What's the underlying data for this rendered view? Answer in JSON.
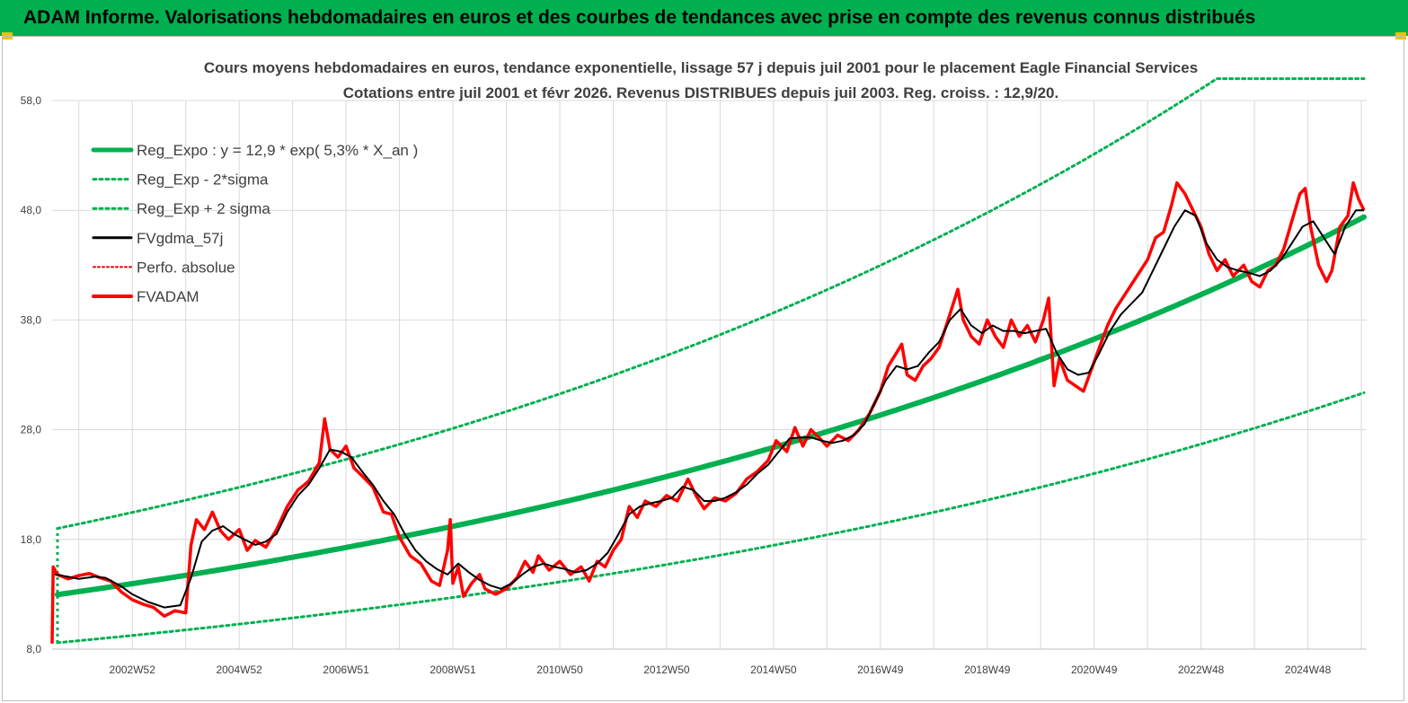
{
  "banner_title": "ADAM Informe. Valorisations hebdomadaires en euros et des courbes de tendances avec prise en compte des revenus connus distribués",
  "colors": {
    "banner": "#00b050",
    "reg_expo": "#00b050",
    "sigma": "#00b050",
    "smoothed": "#000000",
    "perfo": "#e00000",
    "fvadam": "#ff0000"
  },
  "chart_data": {
    "type": "line",
    "title": "Cours moyens hebdomadaires en euros, tendance exponentielle, lissage 57 j depuis juil 2001 pour le placement Eagle Financial Services",
    "subtitle": "Cotations entre juil 2001 et févr 2026. Revenus DISTRIBUES depuis juil 2003. Reg. croiss. : 12,9/20.",
    "xlabel": "",
    "ylabel": "",
    "ylim": [
      8,
      58
    ],
    "yticks": [
      "8,0",
      "18,0",
      "28,0",
      "38,0",
      "48,0",
      "58,0"
    ],
    "xlim": [
      2001.5,
      2026.1
    ],
    "xticks": [
      {
        "label": "2002W52",
        "x": 2003.0
      },
      {
        "label": "2004W52",
        "x": 2005.0
      },
      {
        "label": "2006W51",
        "x": 2007.0
      },
      {
        "label": "2008W51",
        "x": 2009.0
      },
      {
        "label": "2010W50",
        "x": 2011.0
      },
      {
        "label": "2012W50",
        "x": 2013.0
      },
      {
        "label": "2014W50",
        "x": 2015.0
      },
      {
        "label": "2016W49",
        "x": 2017.0
      },
      {
        "label": "2018W49",
        "x": 2019.0
      },
      {
        "label": "2020W49",
        "x": 2021.0
      },
      {
        "label": "2022W48",
        "x": 2023.0
      },
      {
        "label": "2024W48",
        "x": 2025.0
      }
    ],
    "grid": true,
    "legend": "top-left",
    "series": [
      {
        "name": "Reg_Expo : y = 12,9 * exp( 5,3% *  X_an )",
        "style": "solid-thick",
        "formula": {
          "a": 12.9,
          "rate": 0.053,
          "x0": 2001.5
        }
      },
      {
        "name": "Reg_Exp - 2*sigma",
        "style": "dotted",
        "formula": {
          "factor": 0.662
        }
      },
      {
        "name": "Reg_Exp + 2 sigma",
        "style": "dotted",
        "formula": {
          "factor": 1.465,
          "cap": 60
        }
      },
      {
        "name": "FVgdma_57j",
        "style": "solid",
        "points": [
          [
            2001.55,
            14.8
          ],
          [
            2001.8,
            14.6
          ],
          [
            2002.0,
            14.4
          ],
          [
            2002.3,
            14.6
          ],
          [
            2002.5,
            14.5
          ],
          [
            2002.8,
            13.7
          ],
          [
            2003.0,
            13.0
          ],
          [
            2003.3,
            12.3
          ],
          [
            2003.6,
            11.8
          ],
          [
            2003.9,
            12.0
          ],
          [
            2004.1,
            14.5
          ],
          [
            2004.3,
            17.8
          ],
          [
            2004.5,
            18.8
          ],
          [
            2004.7,
            19.2
          ],
          [
            2004.9,
            18.5
          ],
          [
            2005.1,
            18.0
          ],
          [
            2005.3,
            17.5
          ],
          [
            2005.5,
            17.8
          ],
          [
            2005.7,
            18.5
          ],
          [
            2005.9,
            20.5
          ],
          [
            2006.1,
            22.0
          ],
          [
            2006.3,
            23.0
          ],
          [
            2006.5,
            24.5
          ],
          [
            2006.7,
            26.2
          ],
          [
            2006.9,
            26.0
          ],
          [
            2007.1,
            25.5
          ],
          [
            2007.3,
            24.2
          ],
          [
            2007.5,
            23.0
          ],
          [
            2007.7,
            21.5
          ],
          [
            2007.9,
            20.3
          ],
          [
            2008.1,
            18.5
          ],
          [
            2008.3,
            17.0
          ],
          [
            2008.5,
            16.0
          ],
          [
            2008.7,
            15.3
          ],
          [
            2008.9,
            14.8
          ],
          [
            2009.1,
            15.8
          ],
          [
            2009.3,
            15.0
          ],
          [
            2009.5,
            14.3
          ],
          [
            2009.7,
            13.8
          ],
          [
            2009.9,
            13.5
          ],
          [
            2010.1,
            14.0
          ],
          [
            2010.3,
            14.8
          ],
          [
            2010.5,
            15.5
          ],
          [
            2010.7,
            15.8
          ],
          [
            2010.9,
            15.5
          ],
          [
            2011.1,
            15.3
          ],
          [
            2011.3,
            15.0
          ],
          [
            2011.5,
            15.2
          ],
          [
            2011.7,
            15.8
          ],
          [
            2011.9,
            16.8
          ],
          [
            2012.1,
            18.5
          ],
          [
            2012.3,
            20.3
          ],
          [
            2012.5,
            21.0
          ],
          [
            2012.7,
            21.3
          ],
          [
            2012.9,
            21.5
          ],
          [
            2013.1,
            21.8
          ],
          [
            2013.3,
            22.8
          ],
          [
            2013.5,
            22.5
          ],
          [
            2013.7,
            21.5
          ],
          [
            2013.9,
            21.5
          ],
          [
            2014.1,
            21.8
          ],
          [
            2014.3,
            22.3
          ],
          [
            2014.5,
            23.0
          ],
          [
            2014.7,
            24.0
          ],
          [
            2014.9,
            24.8
          ],
          [
            2015.1,
            26.0
          ],
          [
            2015.3,
            27.2
          ],
          [
            2015.5,
            27.3
          ],
          [
            2015.7,
            27.3
          ],
          [
            2015.9,
            27.0
          ],
          [
            2016.1,
            26.8
          ],
          [
            2016.3,
            27.0
          ],
          [
            2016.5,
            27.5
          ],
          [
            2016.7,
            28.5
          ],
          [
            2016.9,
            30.5
          ],
          [
            2017.1,
            32.5
          ],
          [
            2017.3,
            33.8
          ],
          [
            2017.5,
            33.5
          ],
          [
            2017.7,
            33.8
          ],
          [
            2017.9,
            35.0
          ],
          [
            2018.1,
            36.0
          ],
          [
            2018.3,
            38.0
          ],
          [
            2018.5,
            39.0
          ],
          [
            2018.7,
            37.5
          ],
          [
            2018.9,
            36.8
          ],
          [
            2019.1,
            37.5
          ],
          [
            2019.3,
            37.0
          ],
          [
            2019.5,
            37.0
          ],
          [
            2019.7,
            36.8
          ],
          [
            2019.9,
            37.0
          ],
          [
            2020.1,
            37.2
          ],
          [
            2020.3,
            35.0
          ],
          [
            2020.5,
            33.5
          ],
          [
            2020.7,
            33.0
          ],
          [
            2020.9,
            33.2
          ],
          [
            2021.1,
            35.0
          ],
          [
            2021.3,
            37.0
          ],
          [
            2021.5,
            38.5
          ],
          [
            2021.7,
            39.5
          ],
          [
            2021.9,
            40.5
          ],
          [
            2022.1,
            42.5
          ],
          [
            2022.3,
            44.5
          ],
          [
            2022.5,
            46.5
          ],
          [
            2022.7,
            48.0
          ],
          [
            2022.9,
            47.5
          ],
          [
            2023.1,
            45.0
          ],
          [
            2023.3,
            43.5
          ],
          [
            2023.5,
            42.8
          ],
          [
            2023.7,
            42.5
          ],
          [
            2023.9,
            42.3
          ],
          [
            2024.1,
            42.0
          ],
          [
            2024.3,
            42.5
          ],
          [
            2024.5,
            43.5
          ],
          [
            2024.7,
            45.0
          ],
          [
            2024.9,
            46.5
          ],
          [
            2025.1,
            47.0
          ],
          [
            2025.3,
            45.5
          ],
          [
            2025.5,
            44.0
          ],
          [
            2025.7,
            46.5
          ],
          [
            2025.9,
            48.0
          ],
          [
            2026.05,
            48.0
          ]
        ]
      },
      {
        "name": "Perfo. absolue",
        "style": "dotted",
        "points": []
      },
      {
        "name": "FVADAM",
        "style": "solid-thick",
        "points": [
          [
            2001.5,
            8.5
          ],
          [
            2001.52,
            15.5
          ],
          [
            2001.6,
            14.8
          ],
          [
            2001.8,
            14.4
          ],
          [
            2002.0,
            14.7
          ],
          [
            2002.2,
            14.9
          ],
          [
            2002.4,
            14.5
          ],
          [
            2002.6,
            14.2
          ],
          [
            2002.8,
            13.2
          ],
          [
            2003.0,
            12.5
          ],
          [
            2003.2,
            12.1
          ],
          [
            2003.4,
            11.8
          ],
          [
            2003.6,
            11.0
          ],
          [
            2003.8,
            11.5
          ],
          [
            2004.0,
            11.3
          ],
          [
            2004.1,
            17.5
          ],
          [
            2004.2,
            19.8
          ],
          [
            2004.35,
            18.9
          ],
          [
            2004.5,
            20.5
          ],
          [
            2004.65,
            18.8
          ],
          [
            2004.8,
            18.0
          ],
          [
            2005.0,
            18.9
          ],
          [
            2005.15,
            17.0
          ],
          [
            2005.3,
            17.9
          ],
          [
            2005.5,
            17.3
          ],
          [
            2005.7,
            18.9
          ],
          [
            2005.9,
            21.0
          ],
          [
            2006.1,
            22.5
          ],
          [
            2006.3,
            23.3
          ],
          [
            2006.5,
            25.0
          ],
          [
            2006.6,
            29.0
          ],
          [
            2006.7,
            26.2
          ],
          [
            2006.85,
            25.5
          ],
          [
            2007.0,
            26.5
          ],
          [
            2007.15,
            24.5
          ],
          [
            2007.3,
            23.8
          ],
          [
            2007.5,
            22.8
          ],
          [
            2007.7,
            20.5
          ],
          [
            2007.85,
            20.3
          ],
          [
            2008.0,
            18.2
          ],
          [
            2008.2,
            16.5
          ],
          [
            2008.4,
            15.8
          ],
          [
            2008.6,
            14.2
          ],
          [
            2008.75,
            13.8
          ],
          [
            2008.9,
            17.0
          ],
          [
            2008.95,
            19.8
          ],
          [
            2009.0,
            14.0
          ],
          [
            2009.1,
            15.5
          ],
          [
            2009.2,
            12.8
          ],
          [
            2009.35,
            14.0
          ],
          [
            2009.5,
            14.8
          ],
          [
            2009.6,
            13.5
          ],
          [
            2009.8,
            13.0
          ],
          [
            2010.0,
            13.5
          ],
          [
            2010.2,
            14.5
          ],
          [
            2010.35,
            16.0
          ],
          [
            2010.5,
            15.0
          ],
          [
            2010.6,
            16.5
          ],
          [
            2010.8,
            15.2
          ],
          [
            2011.0,
            16.0
          ],
          [
            2011.2,
            14.8
          ],
          [
            2011.4,
            15.5
          ],
          [
            2011.55,
            14.2
          ],
          [
            2011.7,
            16.0
          ],
          [
            2011.85,
            15.5
          ],
          [
            2012.0,
            17.0
          ],
          [
            2012.15,
            18.0
          ],
          [
            2012.3,
            21.0
          ],
          [
            2012.45,
            20.0
          ],
          [
            2012.6,
            21.5
          ],
          [
            2012.8,
            21.0
          ],
          [
            2013.0,
            22.0
          ],
          [
            2013.2,
            21.5
          ],
          [
            2013.4,
            23.5
          ],
          [
            2013.55,
            22.0
          ],
          [
            2013.7,
            20.8
          ],
          [
            2013.9,
            21.8
          ],
          [
            2014.1,
            21.5
          ],
          [
            2014.3,
            22.2
          ],
          [
            2014.5,
            23.5
          ],
          [
            2014.7,
            24.2
          ],
          [
            2014.9,
            25.2
          ],
          [
            2015.05,
            27.0
          ],
          [
            2015.25,
            26.0
          ],
          [
            2015.4,
            28.2
          ],
          [
            2015.55,
            26.5
          ],
          [
            2015.7,
            28.0
          ],
          [
            2015.85,
            27.3
          ],
          [
            2016.0,
            26.5
          ],
          [
            2016.2,
            27.5
          ],
          [
            2016.4,
            27.0
          ],
          [
            2016.6,
            28.0
          ],
          [
            2016.8,
            29.5
          ],
          [
            2017.0,
            31.5
          ],
          [
            2017.15,
            33.8
          ],
          [
            2017.3,
            35.0
          ],
          [
            2017.4,
            35.8
          ],
          [
            2017.5,
            33.0
          ],
          [
            2017.65,
            32.5
          ],
          [
            2017.8,
            33.8
          ],
          [
            2017.95,
            34.5
          ],
          [
            2018.1,
            35.5
          ],
          [
            2018.3,
            38.5
          ],
          [
            2018.45,
            40.8
          ],
          [
            2018.55,
            38.0
          ],
          [
            2018.7,
            36.5
          ],
          [
            2018.85,
            35.8
          ],
          [
            2019.0,
            38.0
          ],
          [
            2019.15,
            36.5
          ],
          [
            2019.3,
            35.5
          ],
          [
            2019.45,
            38.0
          ],
          [
            2019.6,
            36.5
          ],
          [
            2019.75,
            37.5
          ],
          [
            2019.9,
            36.0
          ],
          [
            2020.05,
            38.0
          ],
          [
            2020.15,
            40.0
          ],
          [
            2020.25,
            32.0
          ],
          [
            2020.35,
            34.5
          ],
          [
            2020.5,
            32.5
          ],
          [
            2020.65,
            32.0
          ],
          [
            2020.8,
            31.5
          ],
          [
            2020.95,
            33.5
          ],
          [
            2021.1,
            35.5
          ],
          [
            2021.25,
            37.5
          ],
          [
            2021.4,
            39.0
          ],
          [
            2021.6,
            40.5
          ],
          [
            2021.8,
            42.0
          ],
          [
            2022.0,
            43.5
          ],
          [
            2022.15,
            45.5
          ],
          [
            2022.3,
            46.0
          ],
          [
            2022.45,
            48.5
          ],
          [
            2022.55,
            50.5
          ],
          [
            2022.7,
            49.5
          ],
          [
            2022.85,
            48.0
          ],
          [
            2023.0,
            46.5
          ],
          [
            2023.15,
            44.0
          ],
          [
            2023.3,
            42.5
          ],
          [
            2023.45,
            43.5
          ],
          [
            2023.6,
            42.0
          ],
          [
            2023.8,
            43.0
          ],
          [
            2023.95,
            41.5
          ],
          [
            2024.1,
            41.0
          ],
          [
            2024.25,
            42.5
          ],
          [
            2024.4,
            43.0
          ],
          [
            2024.55,
            44.5
          ],
          [
            2024.7,
            47.0
          ],
          [
            2024.85,
            49.5
          ],
          [
            2024.95,
            50.0
          ],
          [
            2025.05,
            46.5
          ],
          [
            2025.2,
            43.0
          ],
          [
            2025.35,
            41.5
          ],
          [
            2025.45,
            42.5
          ],
          [
            2025.6,
            46.5
          ],
          [
            2025.75,
            47.5
          ],
          [
            2025.85,
            50.5
          ],
          [
            2025.95,
            49.0
          ],
          [
            2026.05,
            48.0
          ]
        ]
      }
    ]
  }
}
